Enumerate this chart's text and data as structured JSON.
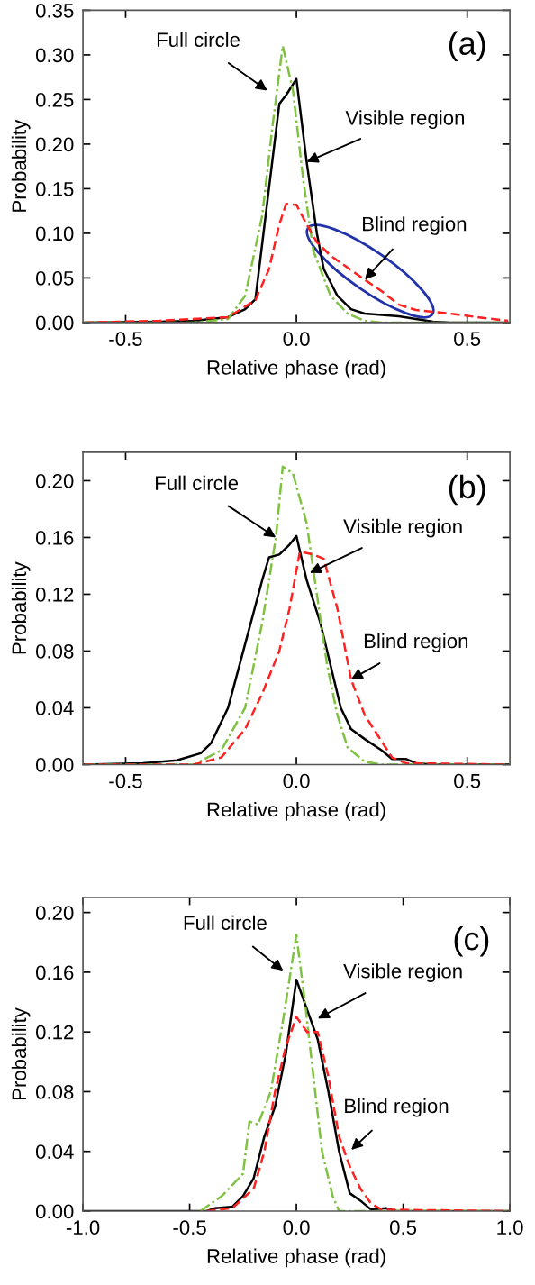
{
  "chart_data": [
    {
      "type": "line",
      "xlabel": "Relative phase (rad)",
      "ylabel": "Probability",
      "xlim": [
        -0.625,
        0.625
      ],
      "ylim": [
        0,
        0.35
      ],
      "xticks": [
        {
          "value": -0.5,
          "label": "-0.5"
        },
        {
          "value": 0,
          "label": "0.0"
        },
        {
          "value": 0.5,
          "label": "0.5"
        }
      ],
      "yticks": [
        {
          "value": 0,
          "label": "0.00"
        },
        {
          "value": 0.05,
          "label": "0.05"
        },
        {
          "value": 0.1,
          "label": "0.10"
        },
        {
          "value": 0.15,
          "label": "0.15"
        },
        {
          "value": 0.2,
          "label": "0.20"
        },
        {
          "value": 0.25,
          "label": "0.25"
        },
        {
          "value": 0.3,
          "label": "0.30"
        },
        {
          "value": 0.35,
          "label": "0.35"
        }
      ],
      "grid": false,
      "legend": false,
      "series": [
        {
          "color": "#000000",
          "line_style": "solid",
          "x": [
            -0.62,
            -0.4,
            -0.3,
            -0.2,
            -0.15,
            -0.12,
            -0.09,
            -0.05,
            -0.03,
            0.0,
            0.03,
            0.06,
            0.08,
            0.12,
            0.16,
            0.2,
            0.3,
            0.35,
            0.4,
            0.45,
            0.62
          ],
          "values": [
            0,
            0.001,
            0.002,
            0.006,
            0.015,
            0.026,
            0.12,
            0.245,
            0.255,
            0.273,
            0.18,
            0.1,
            0.06,
            0.03,
            0.015,
            0.01,
            0.007,
            0.004,
            0.001,
            0,
            0
          ]
        },
        {
          "color": "#7fc241",
          "line_style": "dashdot",
          "x": [
            -0.62,
            -0.3,
            -0.2,
            -0.15,
            -0.1,
            -0.07,
            -0.04,
            -0.01,
            0.02,
            0.05,
            0.1,
            0.15,
            0.2,
            0.25,
            0.62
          ],
          "values": [
            0,
            0,
            0.004,
            0.03,
            0.12,
            0.22,
            0.31,
            0.26,
            0.16,
            0.08,
            0.03,
            0.01,
            0.002,
            0,
            0
          ]
        },
        {
          "color": "#ff2020",
          "line_style": "dashed",
          "x": [
            -0.62,
            -0.4,
            -0.2,
            -0.12,
            -0.08,
            -0.05,
            -0.03,
            0.0,
            0.03,
            0.06,
            0.1,
            0.2,
            0.25,
            0.3,
            0.35,
            0.45,
            0.55,
            0.62
          ],
          "values": [
            0,
            0.002,
            0.006,
            0.025,
            0.06,
            0.11,
            0.133,
            0.132,
            0.11,
            0.09,
            0.075,
            0.048,
            0.035,
            0.02,
            0.014,
            0.01,
            0.005,
            0.002
          ]
        }
      ],
      "annotations": [
        {
          "text": "Full circle",
          "x": -0.085,
          "y": 0.26
        },
        {
          "text": "Visible region",
          "x": 0.03,
          "y": 0.18
        },
        {
          "text": "Blind region",
          "x": 0.2,
          "y": 0.048
        },
        "(a)"
      ]
    },
    {
      "type": "line",
      "xlabel": "Relative phase (rad)",
      "ylabel": "Probability",
      "xlim": [
        -0.625,
        0.625
      ],
      "ylim": [
        0,
        0.22
      ],
      "xticks": [
        {
          "value": -0.5,
          "label": "-0.5"
        },
        {
          "value": 0,
          "label": "0.0"
        },
        {
          "value": 0.5,
          "label": "0.5"
        }
      ],
      "yticks": [
        {
          "value": 0,
          "label": "0.00"
        },
        {
          "value": 0.04,
          "label": "0.04"
        },
        {
          "value": 0.08,
          "label": "0.08"
        },
        {
          "value": 0.12,
          "label": "0.12"
        },
        {
          "value": 0.16,
          "label": "0.16"
        },
        {
          "value": 0.2,
          "label": "0.20"
        }
      ],
      "grid": false,
      "legend": false,
      "series": [
        {
          "color": "#000000",
          "line_style": "solid",
          "x": [
            -0.62,
            -0.45,
            -0.35,
            -0.28,
            -0.25,
            -0.2,
            -0.15,
            -0.1,
            -0.08,
            -0.05,
            -0.02,
            0.0,
            0.03,
            0.07,
            0.1,
            0.13,
            0.16,
            0.2,
            0.25,
            0.28,
            0.32,
            0.35,
            0.4,
            0.62
          ],
          "values": [
            0,
            0.001,
            0.003,
            0.008,
            0.015,
            0.04,
            0.085,
            0.13,
            0.146,
            0.148,
            0.155,
            0.161,
            0.13,
            0.1,
            0.07,
            0.04,
            0.025,
            0.018,
            0.01,
            0.004,
            0.004,
            0.001,
            0,
            0
          ]
        },
        {
          "color": "#7fc241",
          "line_style": "dashdot",
          "x": [
            -0.62,
            -0.3,
            -0.22,
            -0.15,
            -0.1,
            -0.06,
            -0.04,
            -0.01,
            0.03,
            0.06,
            0.09,
            0.12,
            0.15,
            0.2,
            0.25,
            0.62
          ],
          "values": [
            0,
            0,
            0.01,
            0.04,
            0.1,
            0.16,
            0.21,
            0.205,
            0.17,
            0.12,
            0.07,
            0.035,
            0.012,
            0.002,
            0,
            0
          ]
        },
        {
          "color": "#ff2020",
          "line_style": "dashed",
          "x": [
            -0.62,
            -0.3,
            -0.22,
            -0.15,
            -0.1,
            -0.05,
            -0.02,
            0.01,
            0.05,
            0.08,
            0.12,
            0.16,
            0.2,
            0.24,
            0.28,
            0.32,
            0.62
          ],
          "values": [
            0,
            0,
            0.005,
            0.025,
            0.05,
            0.08,
            0.11,
            0.15,
            0.148,
            0.145,
            0.11,
            0.06,
            0.035,
            0.02,
            0.005,
            0.001,
            0
          ]
        }
      ],
      "annotations": [
        {
          "text": "Full circle",
          "x": -0.06,
          "y": 0.16
        },
        {
          "text": "Visible region",
          "x": 0.039,
          "y": 0.135
        },
        {
          "text": "Blind region",
          "x": 0.16,
          "y": 0.06
        },
        "(b)"
      ]
    },
    {
      "type": "line",
      "xlabel": "Relative phase (rad)",
      "ylabel": "Probability",
      "xlim": [
        -1.0,
        1.0
      ],
      "ylim": [
        0,
        0.21
      ],
      "xticks": [
        {
          "value": -1.0,
          "label": "-1.0"
        },
        {
          "value": -0.5,
          "label": "-0.5"
        },
        {
          "value": 0,
          "label": "0.0"
        },
        {
          "value": 0.5,
          "label": "0.5"
        },
        {
          "value": 1.0,
          "label": "1.0"
        }
      ],
      "yticks": [
        {
          "value": 0,
          "label": "0.00"
        },
        {
          "value": 0.04,
          "label": "0.04"
        },
        {
          "value": 0.08,
          "label": "0.08"
        },
        {
          "value": 0.12,
          "label": "0.12"
        },
        {
          "value": 0.16,
          "label": "0.16"
        },
        {
          "value": 0.2,
          "label": "0.20"
        }
      ],
      "grid": false,
      "legend": false,
      "series": [
        {
          "color": "#000000",
          "line_style": "solid",
          "x": [
            -1.0,
            -0.42,
            -0.38,
            -0.3,
            -0.25,
            -0.2,
            -0.15,
            -0.1,
            -0.05,
            0.0,
            0.05,
            0.1,
            0.15,
            0.2,
            0.25,
            0.3,
            0.35,
            0.42,
            0.47,
            1.0
          ],
          "values": [
            0,
            0,
            0.002,
            0.003,
            0.01,
            0.022,
            0.05,
            0.07,
            0.105,
            0.155,
            0.135,
            0.115,
            0.08,
            0.04,
            0.012,
            0.007,
            0.001,
            0.002,
            0,
            0
          ]
        },
        {
          "color": "#7fc241",
          "line_style": "dashdot",
          "x": [
            -0.45,
            -0.35,
            -0.25,
            -0.22,
            -0.18,
            -0.12,
            -0.06,
            0.0,
            0.04,
            0.08,
            0.12,
            0.17,
            0.2,
            1.0
          ],
          "values": [
            0,
            0.01,
            0.025,
            0.06,
            0.058,
            0.08,
            0.13,
            0.185,
            0.14,
            0.09,
            0.04,
            0.01,
            0,
            0
          ]
        },
        {
          "color": "#ff2020",
          "line_style": "dashed",
          "x": [
            -0.42,
            -0.3,
            -0.2,
            -0.15,
            -0.1,
            -0.05,
            0.0,
            0.05,
            0.1,
            0.15,
            0.2,
            0.25,
            0.3,
            0.35,
            0.4,
            1.0
          ],
          "values": [
            0,
            0.002,
            0.015,
            0.04,
            0.08,
            0.11,
            0.13,
            0.12,
            0.12,
            0.09,
            0.05,
            0.03,
            0.015,
            0.005,
            0.001,
            0
          ]
        }
      ],
      "annotations": [
        {
          "text": "Full circle",
          "x": -0.062,
          "y": 0.161
        },
        {
          "text": "Visible region",
          "x": 0.1,
          "y": 0.129
        },
        {
          "text": "Blind region",
          "x": 0.257,
          "y": 0.041
        },
        "(c)"
      ]
    }
  ]
}
